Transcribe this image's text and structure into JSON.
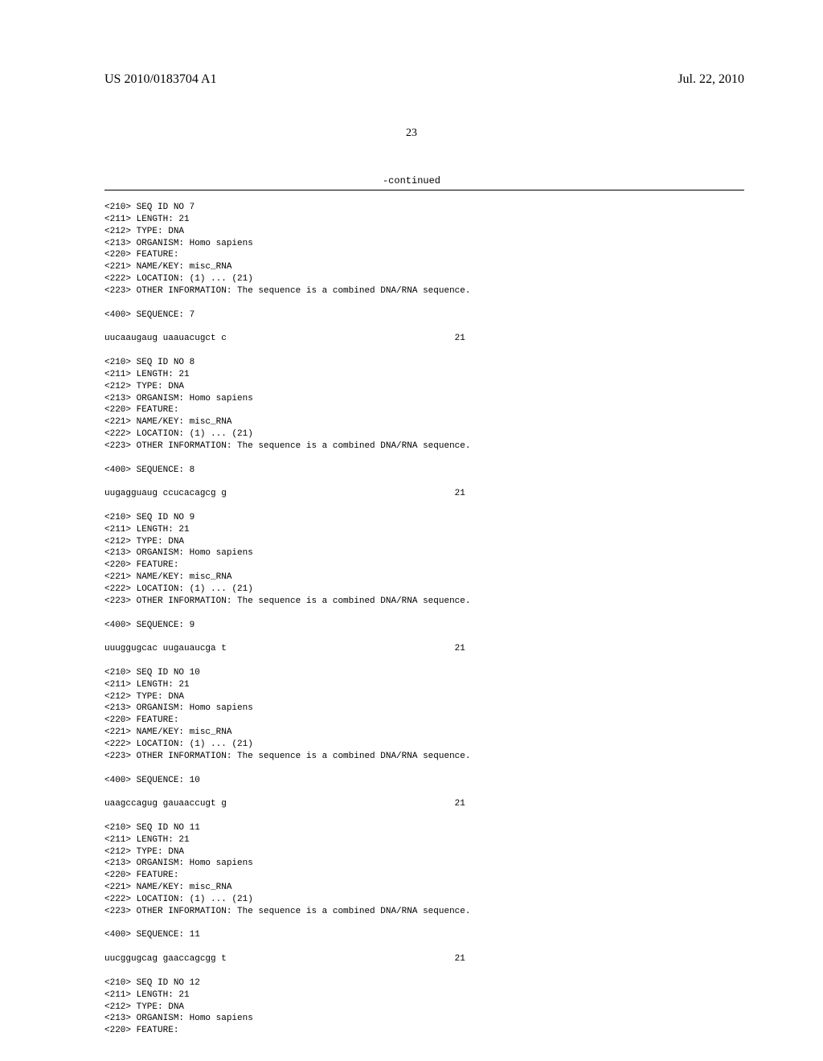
{
  "header": {
    "publication_number": "US 2010/0183704 A1",
    "publication_date": "Jul. 22, 2010",
    "page_number": "23",
    "continued_label": "-continued"
  },
  "sequences": [
    {
      "id": "7",
      "length": "21",
      "type": "DNA",
      "organism": "Homo sapiens",
      "name_key": "misc_RNA",
      "location": "(1) ... (21)",
      "other_info": "The sequence is a combined DNA/RNA sequence.",
      "sequence_label": "7",
      "sequence_data": "uucaaugaug uaauacugct c",
      "sequence_length": "21"
    },
    {
      "id": "8",
      "length": "21",
      "type": "DNA",
      "organism": "Homo sapiens",
      "name_key": "misc_RNA",
      "location": "(1) ... (21)",
      "other_info": "The sequence is a combined DNA/RNA sequence.",
      "sequence_label": "8",
      "sequence_data": "uugagguaug ccucacagcg g",
      "sequence_length": "21"
    },
    {
      "id": "9",
      "length": "21",
      "type": "DNA",
      "organism": "Homo sapiens",
      "name_key": "misc_RNA",
      "location": "(1) ... (21)",
      "other_info": "The sequence is a combined DNA/RNA sequence.",
      "sequence_label": "9",
      "sequence_data": "uuuggugcac uugauaucga t",
      "sequence_length": "21"
    },
    {
      "id": "10",
      "length": "21",
      "type": "DNA",
      "organism": "Homo sapiens",
      "name_key": "misc_RNA",
      "location": "(1) ... (21)",
      "other_info": "The sequence is a combined DNA/RNA sequence.",
      "sequence_label": "10",
      "sequence_data": "uaagccagug gauaaccugt g",
      "sequence_length": "21"
    },
    {
      "id": "11",
      "length": "21",
      "type": "DNA",
      "organism": "Homo sapiens",
      "name_key": "misc_RNA",
      "location": "(1) ... (21)",
      "other_info": "The sequence is a combined DNA/RNA sequence.",
      "sequence_label": "11",
      "sequence_data": "uucggugcag gaaccagcgg t",
      "sequence_length": "21"
    },
    {
      "id": "12",
      "length": "21",
      "type": "DNA",
      "organism": "Homo sapiens",
      "partial": true
    }
  ],
  "labels": {
    "seq_id_prefix": "<210> SEQ ID NO ",
    "length_prefix": "<211> LENGTH: ",
    "type_prefix": "<212> TYPE: ",
    "organism_prefix": "<213> ORGANISM: ",
    "feature_prefix": "<220> FEATURE:",
    "name_key_prefix": "<221> NAME/KEY: ",
    "location_prefix": "<222> LOCATION: ",
    "other_info_prefix": "<223> OTHER INFORMATION: ",
    "sequence_prefix": "<400> SEQUENCE: "
  }
}
